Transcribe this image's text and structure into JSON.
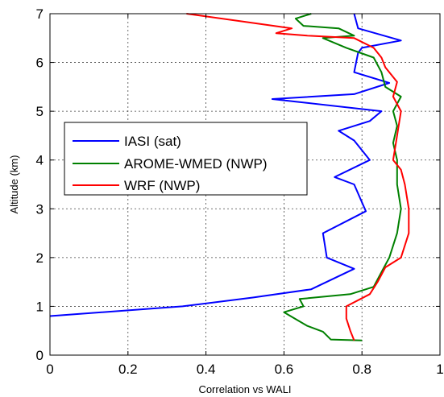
{
  "chart_data": {
    "type": "line",
    "title": "",
    "xlabel": "Correlation vs WALI",
    "ylabel": "Altitude (km)",
    "xlim": [
      0,
      1
    ],
    "ylim": [
      0,
      7
    ],
    "xticks": [
      "0",
      "0.2",
      "0.4",
      "0.6",
      "0.8",
      "1"
    ],
    "yticks": [
      "0",
      "1",
      "2",
      "3",
      "4",
      "5",
      "6",
      "7"
    ],
    "grid": true,
    "legend_position": "center-left",
    "series": [
      {
        "name": "IASI (sat)",
        "color": "#0000ff",
        "points": [
          [
            0.0,
            0.8
          ],
          [
            0.34,
            1.0
          ],
          [
            0.52,
            1.18
          ],
          [
            0.67,
            1.35
          ],
          [
            0.78,
            1.77
          ],
          [
            0.71,
            2.0
          ],
          [
            0.7,
            2.5
          ],
          [
            0.81,
            2.95
          ],
          [
            0.78,
            3.5
          ],
          [
            0.73,
            3.65
          ],
          [
            0.82,
            4.0
          ],
          [
            0.78,
            4.4
          ],
          [
            0.74,
            4.6
          ],
          [
            0.82,
            4.8
          ],
          [
            0.85,
            5.0
          ],
          [
            0.57,
            5.25
          ],
          [
            0.78,
            5.35
          ],
          [
            0.87,
            5.58
          ],
          [
            0.78,
            5.8
          ],
          [
            0.79,
            6.2
          ],
          [
            0.8,
            6.3
          ],
          [
            0.9,
            6.45
          ],
          [
            0.79,
            6.7
          ],
          [
            0.78,
            7.0
          ]
        ]
      },
      {
        "name": "AROME-WMED (NWP)",
        "color": "#008000",
        "points": [
          [
            0.8,
            0.3
          ],
          [
            0.72,
            0.32
          ],
          [
            0.7,
            0.48
          ],
          [
            0.66,
            0.6
          ],
          [
            0.6,
            0.88
          ],
          [
            0.65,
            1.0
          ],
          [
            0.64,
            1.15
          ],
          [
            0.77,
            1.25
          ],
          [
            0.83,
            1.4
          ],
          [
            0.85,
            1.7
          ],
          [
            0.87,
            2.0
          ],
          [
            0.89,
            2.5
          ],
          [
            0.9,
            3.0
          ],
          [
            0.89,
            3.5
          ],
          [
            0.89,
            4.0
          ],
          [
            0.88,
            4.35
          ],
          [
            0.89,
            4.7
          ],
          [
            0.88,
            5.0
          ],
          [
            0.9,
            5.3
          ],
          [
            0.86,
            5.5
          ],
          [
            0.85,
            5.8
          ],
          [
            0.83,
            6.1
          ],
          [
            0.76,
            6.3
          ],
          [
            0.7,
            6.5
          ],
          [
            0.78,
            6.55
          ],
          [
            0.74,
            6.7
          ],
          [
            0.65,
            6.75
          ],
          [
            0.63,
            6.9
          ],
          [
            0.67,
            7.0
          ]
        ]
      },
      {
        "name": "WRF (NWP)",
        "color": "#ff0000",
        "points": [
          [
            0.78,
            0.3
          ],
          [
            0.77,
            0.5
          ],
          [
            0.76,
            0.75
          ],
          [
            0.76,
            1.0
          ],
          [
            0.82,
            1.25
          ],
          [
            0.84,
            1.5
          ],
          [
            0.86,
            1.8
          ],
          [
            0.9,
            2.0
          ],
          [
            0.92,
            2.5
          ],
          [
            0.92,
            3.0
          ],
          [
            0.91,
            3.5
          ],
          [
            0.9,
            3.8
          ],
          [
            0.88,
            4.0
          ],
          [
            0.89,
            4.5
          ],
          [
            0.9,
            5.0
          ],
          [
            0.88,
            5.3
          ],
          [
            0.89,
            5.6
          ],
          [
            0.86,
            5.9
          ],
          [
            0.85,
            6.1
          ],
          [
            0.83,
            6.3
          ],
          [
            0.78,
            6.5
          ],
          [
            0.66,
            6.55
          ],
          [
            0.58,
            6.6
          ],
          [
            0.62,
            6.7
          ],
          [
            0.53,
            6.8
          ],
          [
            0.35,
            7.0
          ]
        ]
      }
    ]
  }
}
